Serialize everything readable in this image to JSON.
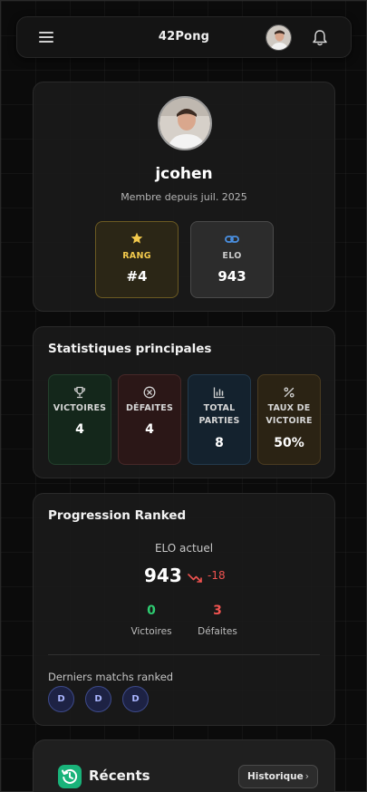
{
  "header": {
    "title": "42Pong",
    "menu_icon": "hamburger-menu-icon",
    "avatar_icon": "user-avatar",
    "bell_icon": "bell-icon"
  },
  "profile": {
    "username": "jcohen",
    "member_since": "Membre depuis juil. 2025",
    "rank": {
      "label": "RANG",
      "value": "#4",
      "icon": "star-icon",
      "color": "#f2c94c"
    },
    "elo": {
      "label": "ELO",
      "value": "943",
      "icon": "link-icon",
      "color": "#4a90e2"
    }
  },
  "stats": {
    "title": "Statistiques principales",
    "items": [
      {
        "label": "VICTOIRES",
        "value": "4",
        "icon": "trophy-icon"
      },
      {
        "label": "DÉFAITES",
        "value": "4",
        "icon": "circle-x-icon"
      },
      {
        "label_line1": "TOTAL",
        "label_line2": "PARTIES",
        "value": "8",
        "icon": "bar-chart-icon"
      },
      {
        "label_line1": "TAUX DE",
        "label_line2": "VICTOIRE",
        "value": "50%",
        "icon": "percent-icon"
      }
    ]
  },
  "ranked": {
    "title": "Progression Ranked",
    "elo_caption": "ELO actuel",
    "elo_current": "943",
    "elo_delta": "-18",
    "wins_value": "0",
    "wins_label": "Victoires",
    "losses_value": "3",
    "losses_label": "Défaites",
    "last_matches_caption": "Derniers matchs ranked",
    "last_matches": [
      "D",
      "D",
      "D"
    ]
  },
  "recent": {
    "title": "Récents",
    "icon": "history-icon",
    "history_button": "Historique",
    "history_chevron": "›"
  },
  "colors": {
    "win": "#2ecc71",
    "loss": "#ef5350",
    "accent_green": "#19b37a"
  }
}
